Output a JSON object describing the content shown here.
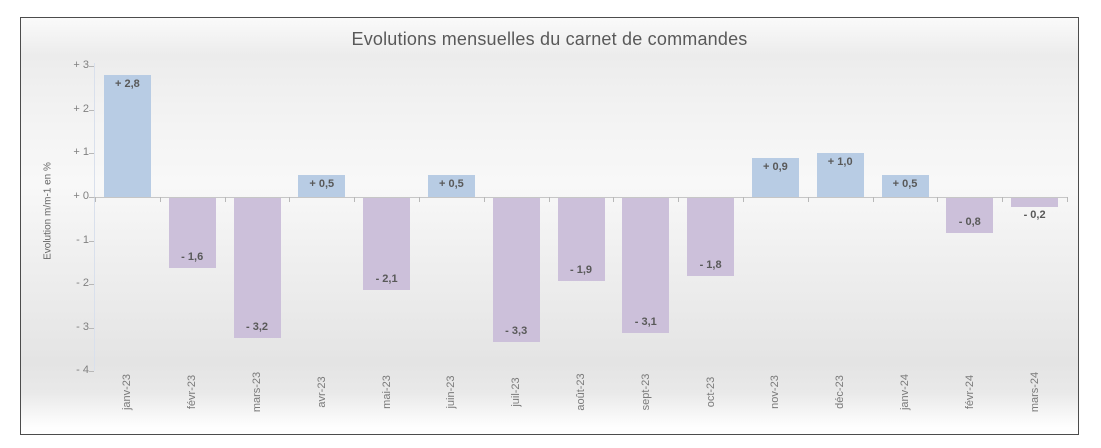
{
  "chart_data": {
    "type": "bar",
    "title": "Evolutions mensuelles du carnet de commandes",
    "ylabel": "Evolution m/m-1 en %",
    "xlabel": "",
    "categories": [
      "janv-23",
      "févr-23",
      "mars-23",
      "avr-23",
      "mai-23",
      "juin-23",
      "juil-23",
      "août-23",
      "sept-23",
      "oct-23",
      "nov-23",
      "déc-23",
      "janv-24",
      "févr-24",
      "mars-24"
    ],
    "values": [
      2.8,
      -1.6,
      -3.2,
      0.5,
      -2.1,
      0.5,
      -3.3,
      -1.9,
      -3.1,
      -1.8,
      0.9,
      1.0,
      0.5,
      -0.8,
      -0.2
    ],
    "data_labels": [
      "+ 2,8",
      "- 1,6",
      "- 3,2",
      "+ 0,5",
      "- 2,1",
      "+ 0,5",
      "- 3,3",
      "- 1,9",
      "- 3,1",
      "- 1,8",
      "+ 0,9",
      "+ 1,0",
      "+ 0,5",
      "- 0,8",
      "- 0,2"
    ],
    "y_ticks": [
      {
        "value": 3,
        "label": "+ 3"
      },
      {
        "value": 2,
        "label": "+ 2"
      },
      {
        "value": 1,
        "label": "+ 1"
      },
      {
        "value": 0,
        "label": "+ 0"
      },
      {
        "value": -1,
        "label": "- 1"
      },
      {
        "value": -2,
        "label": "- 2"
      },
      {
        "value": -3,
        "label": "- 3"
      },
      {
        "value": -4,
        "label": "- 4"
      }
    ],
    "ylim": [
      -4,
      3
    ],
    "grid": false,
    "legend": "none",
    "colors": {
      "positive_bar": "#b8cce4",
      "negative_bar": "#ccc0da",
      "title_text": "#595959",
      "value_label_text": "#595959",
      "axis_tick_text": "#808080",
      "axis_line": "#c6c6c6",
      "chart_border": "#4c4c4c"
    }
  }
}
